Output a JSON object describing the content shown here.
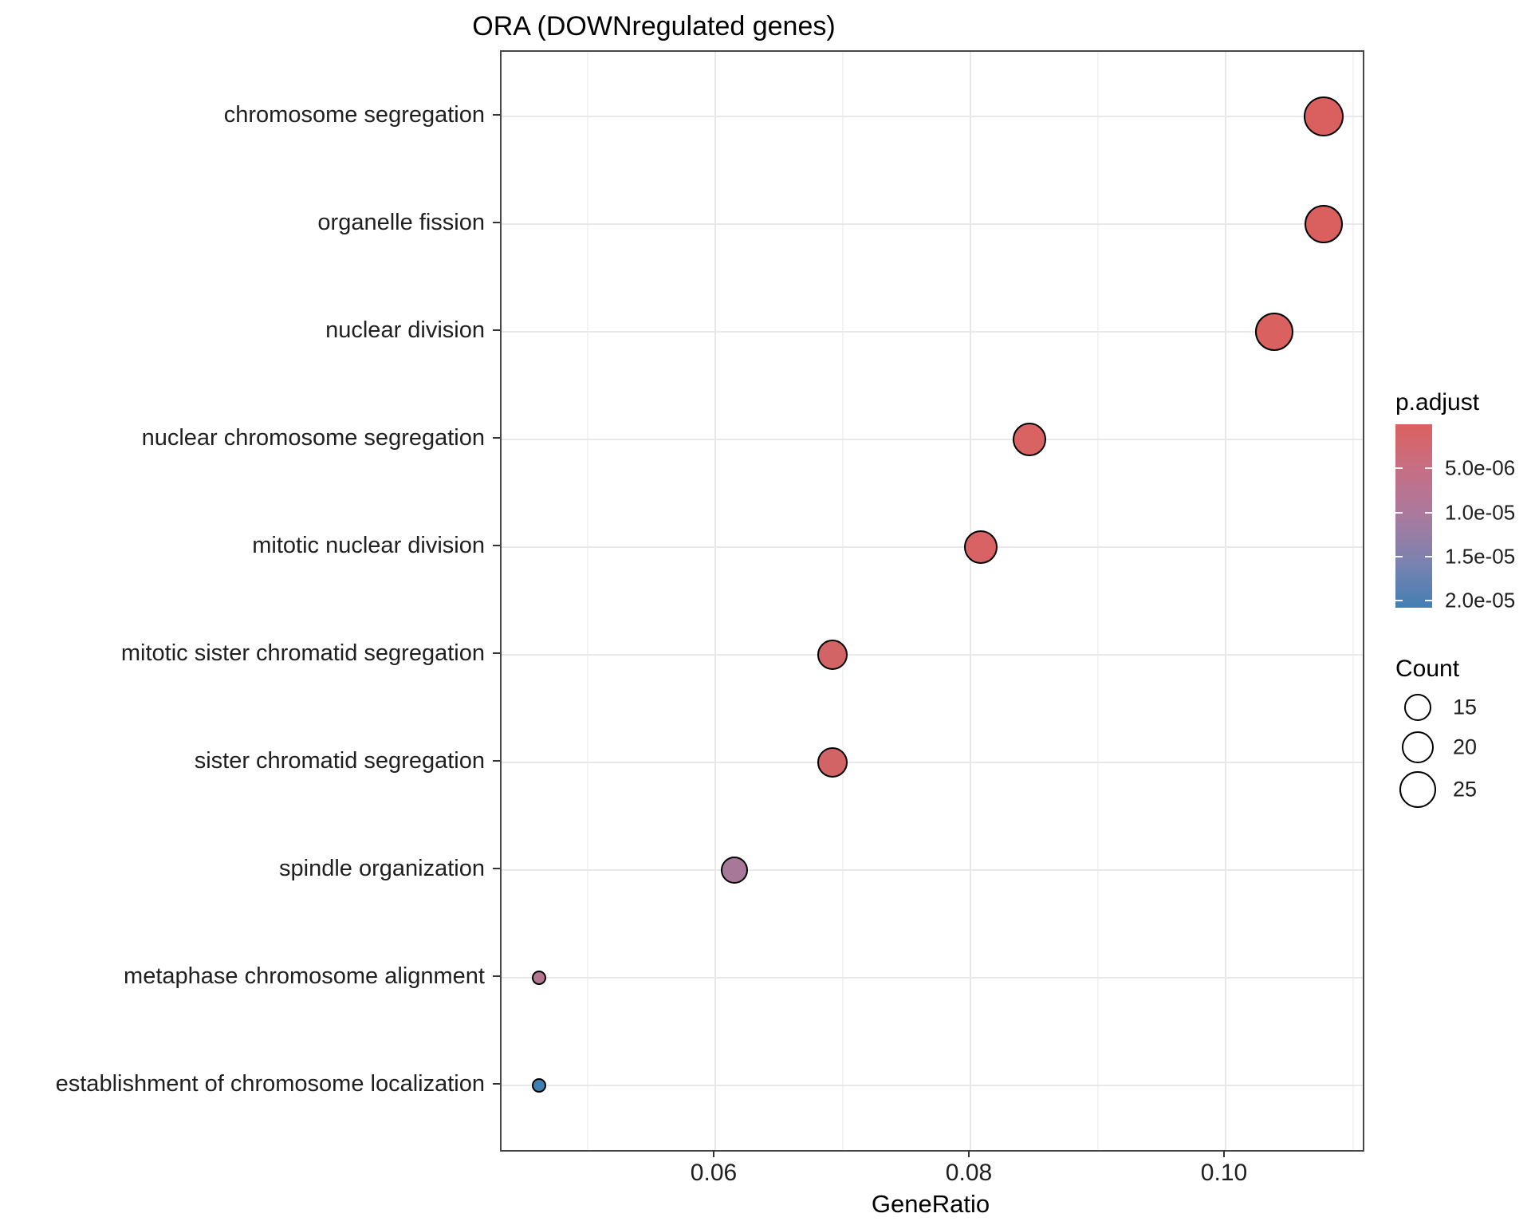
{
  "title": "ORA (DOWNregulated genes)",
  "chart_data": {
    "type": "scatter",
    "title": "ORA (DOWNregulated genes)",
    "xlabel": "GeneRatio",
    "ylabel": "",
    "xlim": [
      0.04325,
      0.11075
    ],
    "x_ticks": [
      0.06,
      0.08,
      0.1
    ],
    "x_tick_labels": [
      "0.06",
      "0.08",
      "0.10"
    ],
    "x_minor_ticks": [
      0.05,
      0.07,
      0.09,
      0.11
    ],
    "grid": true,
    "legend_position": "right",
    "categories": [
      "chromosome segregation",
      "organelle fission",
      "nuclear division",
      "nuclear chromosome segregation",
      "mitotic nuclear division",
      "mitotic sister chromatid segregation",
      "sister chromatid segregation",
      "spindle organization",
      "metaphase chromosome alignment",
      "establishment of chromosome localization"
    ],
    "points": [
      {
        "term": "chromosome segregation",
        "gene_ratio": 0.1077,
        "count": 28,
        "p_adjust": 1e-06,
        "fill": "#D9605E",
        "radius_px": 25
      },
      {
        "term": "organelle fission",
        "gene_ratio": 0.1077,
        "count": 28,
        "p_adjust": 1e-06,
        "fill": "#D9605E",
        "radius_px": 24
      },
      {
        "term": "nuclear division",
        "gene_ratio": 0.1038,
        "count": 27,
        "p_adjust": 1.2e-06,
        "fill": "#D9615F",
        "radius_px": 24
      },
      {
        "term": "nuclear chromosome segregation",
        "gene_ratio": 0.0846,
        "count": 22,
        "p_adjust": 1.8e-06,
        "fill": "#D96263",
        "radius_px": 21
      },
      {
        "term": "mitotic nuclear division",
        "gene_ratio": 0.0808,
        "count": 21,
        "p_adjust": 2e-06,
        "fill": "#D96264",
        "radius_px": 21
      },
      {
        "term": "mitotic sister chromatid segregation",
        "gene_ratio": 0.0692,
        "count": 18,
        "p_adjust": 3e-06,
        "fill": "#D26466",
        "radius_px": 19
      },
      {
        "term": "sister chromatid segregation",
        "gene_ratio": 0.0692,
        "count": 18,
        "p_adjust": 3e-06,
        "fill": "#D26466",
        "radius_px": 19
      },
      {
        "term": "spindle organization",
        "gene_ratio": 0.0615,
        "count": 16,
        "p_adjust": 1.2e-05,
        "fill": "#A87899",
        "radius_px": 17
      },
      {
        "term": "metaphase chromosome alignment",
        "gene_ratio": 0.0462,
        "count": 12,
        "p_adjust": 9e-06,
        "fill": "#B5748F",
        "radius_px": 9
      },
      {
        "term": "establishment of chromosome localization",
        "gene_ratio": 0.0462,
        "count": 12,
        "p_adjust": 2e-05,
        "fill": "#3E80B2",
        "radius_px": 9
      }
    ],
    "legend": {
      "p_adjust": {
        "title": "p.adjust",
        "tick_labels": [
          "5.0e-06",
          "1.0e-05",
          "1.5e-05",
          "2.0e-05"
        ],
        "tick_values": [
          5e-06,
          1e-05,
          1.5e-05,
          2e-05
        ],
        "range": [
          0,
          2.08e-05
        ],
        "gradient": [
          "#DC615F",
          "#C66F85",
          "#A97A9E",
          "#7B82AF",
          "#4380B4"
        ]
      },
      "count": {
        "title": "Count",
        "items": [
          {
            "label": "15",
            "radius_px": 17
          },
          {
            "label": "20",
            "radius_px": 20
          },
          {
            "label": "25",
            "radius_px": 23
          }
        ]
      }
    },
    "colors": {
      "low_p_adjust": "#DC615F",
      "high_p_adjust": "#4380B4",
      "panel_border": "#474747",
      "grid_major": "#E8E8E8",
      "grid_minor": "#F3F3F3"
    }
  }
}
